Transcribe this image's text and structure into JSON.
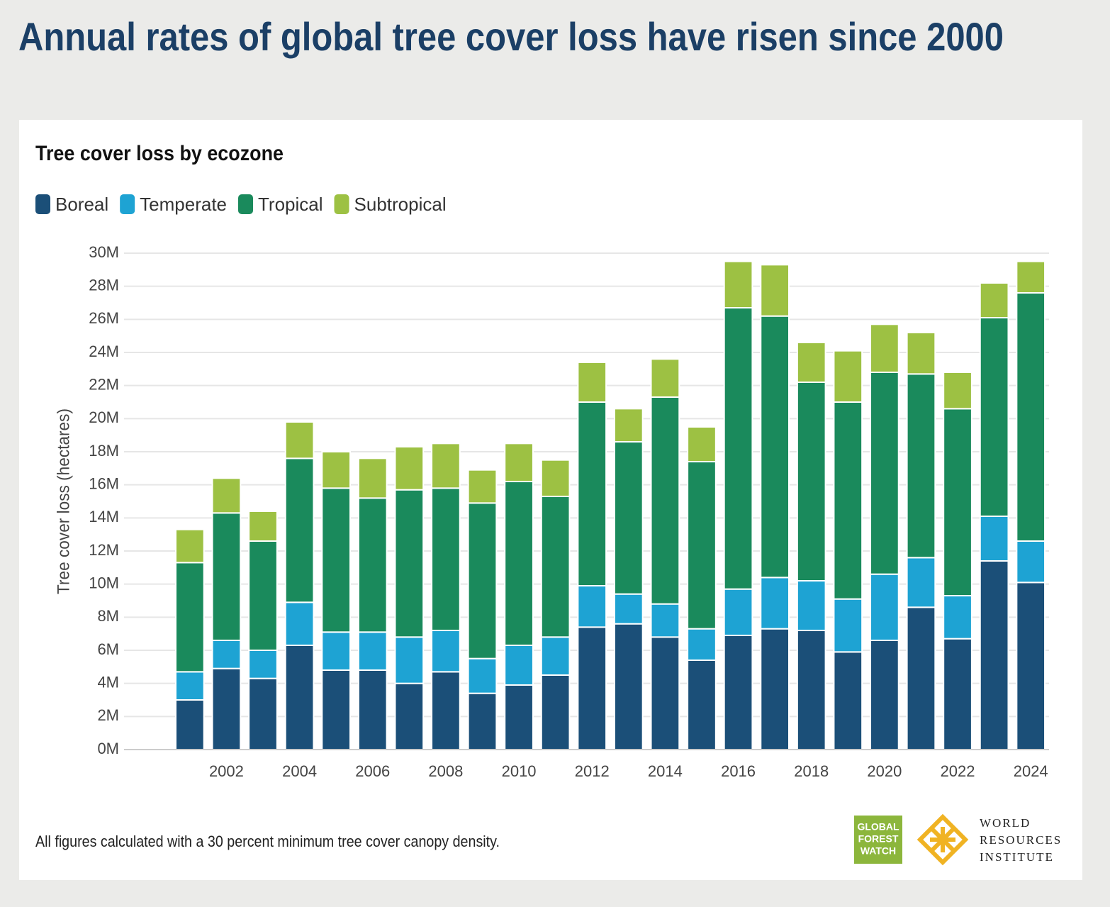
{
  "header": {
    "title": "Annual rates of global tree cover loss have risen since 2000"
  },
  "chart_data": {
    "type": "stacked-bar",
    "title": "Tree cover loss by ecozone",
    "ylabel": "Tree cover loss (hectares)",
    "x": [
      2001,
      2002,
      2003,
      2004,
      2005,
      2006,
      2007,
      2008,
      2009,
      2010,
      2011,
      2012,
      2013,
      2014,
      2015,
      2016,
      2017,
      2018,
      2019,
      2020,
      2021,
      2022,
      2023,
      2024
    ],
    "xlim": [
      1999.2,
      2024.5
    ],
    "xticks": [
      2002,
      2004,
      2006,
      2008,
      2010,
      2012,
      2014,
      2016,
      2018,
      2020,
      2022,
      2024
    ],
    "ylim": [
      0,
      30000000
    ],
    "yticks": [
      {
        "value": 0,
        "label": "0M"
      },
      {
        "value": 2000000,
        "label": "2M"
      },
      {
        "value": 4000000,
        "label": "4M"
      },
      {
        "value": 6000000,
        "label": "6M"
      },
      {
        "value": 8000000,
        "label": "8M"
      },
      {
        "value": 10000000,
        "label": "10M"
      },
      {
        "value": 12000000,
        "label": "12M"
      },
      {
        "value": 14000000,
        "label": "14M"
      },
      {
        "value": 16000000,
        "label": "16M"
      },
      {
        "value": 18000000,
        "label": "18M"
      },
      {
        "value": 20000000,
        "label": "20M"
      },
      {
        "value": 22000000,
        "label": "22M"
      },
      {
        "value": 24000000,
        "label": "24M"
      },
      {
        "value": 26000000,
        "label": "26M"
      },
      {
        "value": 28000000,
        "label": "28M"
      },
      {
        "value": 30000000,
        "label": "30M"
      }
    ],
    "grid": true,
    "legend": "top-left",
    "series": [
      {
        "name": "Boreal",
        "color": "#1b4f78",
        "values": [
          3000000,
          4900000,
          4300000,
          6300000,
          4800000,
          4800000,
          4000000,
          4700000,
          3400000,
          3900000,
          4500000,
          7400000,
          7600000,
          6800000,
          5400000,
          6900000,
          7300000,
          7200000,
          5900000,
          6600000,
          8600000,
          6700000,
          11400000,
          10100000
        ]
      },
      {
        "name": "Temperate",
        "color": "#1ea3d3",
        "values": [
          1700000,
          1700000,
          1700000,
          2600000,
          2300000,
          2300000,
          2800000,
          2500000,
          2100000,
          2400000,
          2300000,
          2500000,
          1800000,
          2000000,
          1900000,
          2800000,
          3100000,
          3000000,
          3200000,
          4000000,
          3000000,
          2600000,
          2700000,
          2500000
        ]
      },
      {
        "name": "Tropical",
        "color": "#1a8a5c",
        "values": [
          6600000,
          7700000,
          6600000,
          8700000,
          8700000,
          8100000,
          8900000,
          8600000,
          9400000,
          9900000,
          8500000,
          11100000,
          9200000,
          12500000,
          10100000,
          17000000,
          15800000,
          12000000,
          11900000,
          12200000,
          11100000,
          11300000,
          12000000,
          15000000
        ]
      },
      {
        "name": "Subtropical",
        "color": "#9dc143",
        "values": [
          2000000,
          2100000,
          1800000,
          2200000,
          2200000,
          2400000,
          2600000,
          2700000,
          2000000,
          2300000,
          2200000,
          2400000,
          2000000,
          2300000,
          2100000,
          2800000,
          3100000,
          2400000,
          3100000,
          2900000,
          2500000,
          2200000,
          2100000,
          1900000
        ]
      }
    ]
  },
  "footer": {
    "note": "All figures calculated with a 30 percent minimum tree cover canopy density.",
    "gfw_logo": [
      "GLOBAL",
      "FOREST",
      "WATCH"
    ],
    "wri_logo": [
      "WORLD",
      "RESOURCES",
      "INSTITUTE"
    ]
  }
}
